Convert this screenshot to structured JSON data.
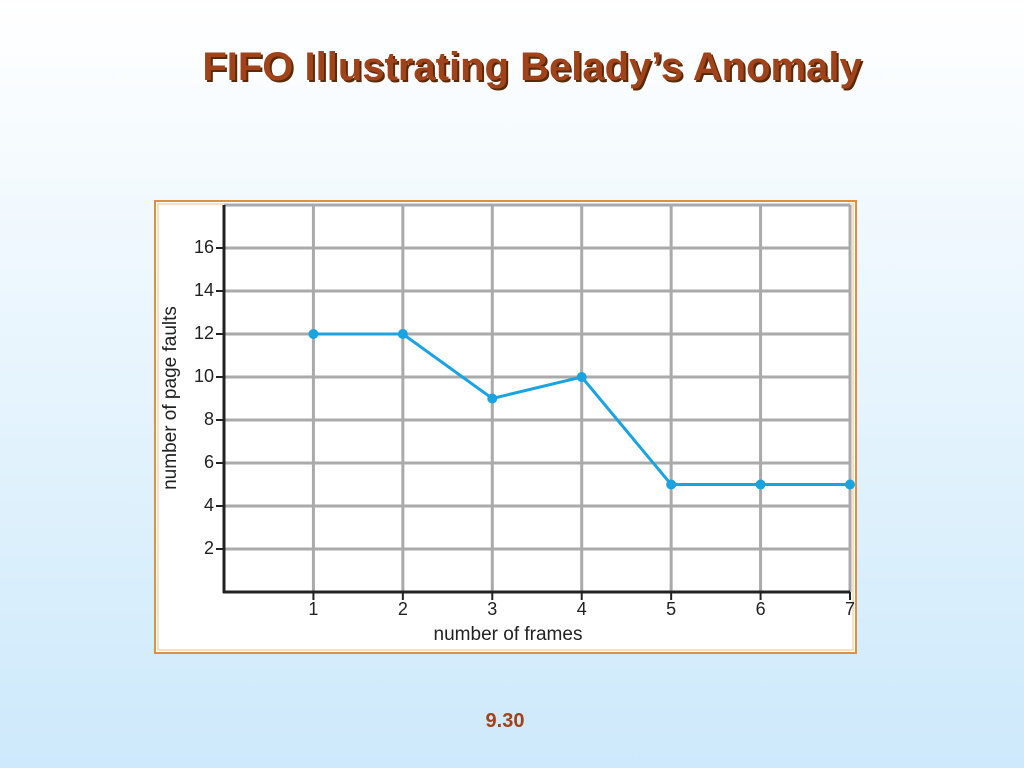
{
  "slide_title": "FIFO Illustrating Belady’s Anomaly",
  "page_number": "9.30",
  "chart_data": {
    "type": "line",
    "x": [
      1,
      2,
      3,
      4,
      5,
      6,
      7
    ],
    "values": [
      12,
      12,
      9,
      10,
      5,
      5,
      5
    ],
    "color": "#1ba3e0",
    "xlim": [
      0,
      7
    ],
    "ylim": [
      0,
      18
    ],
    "xticks": [
      1,
      2,
      3,
      4,
      5,
      6,
      7
    ],
    "yticks": [
      2,
      4,
      6,
      8,
      10,
      12,
      14,
      16
    ],
    "grid": true,
    "xlabel": "number of frames",
    "ylabel": "number of page faults"
  }
}
